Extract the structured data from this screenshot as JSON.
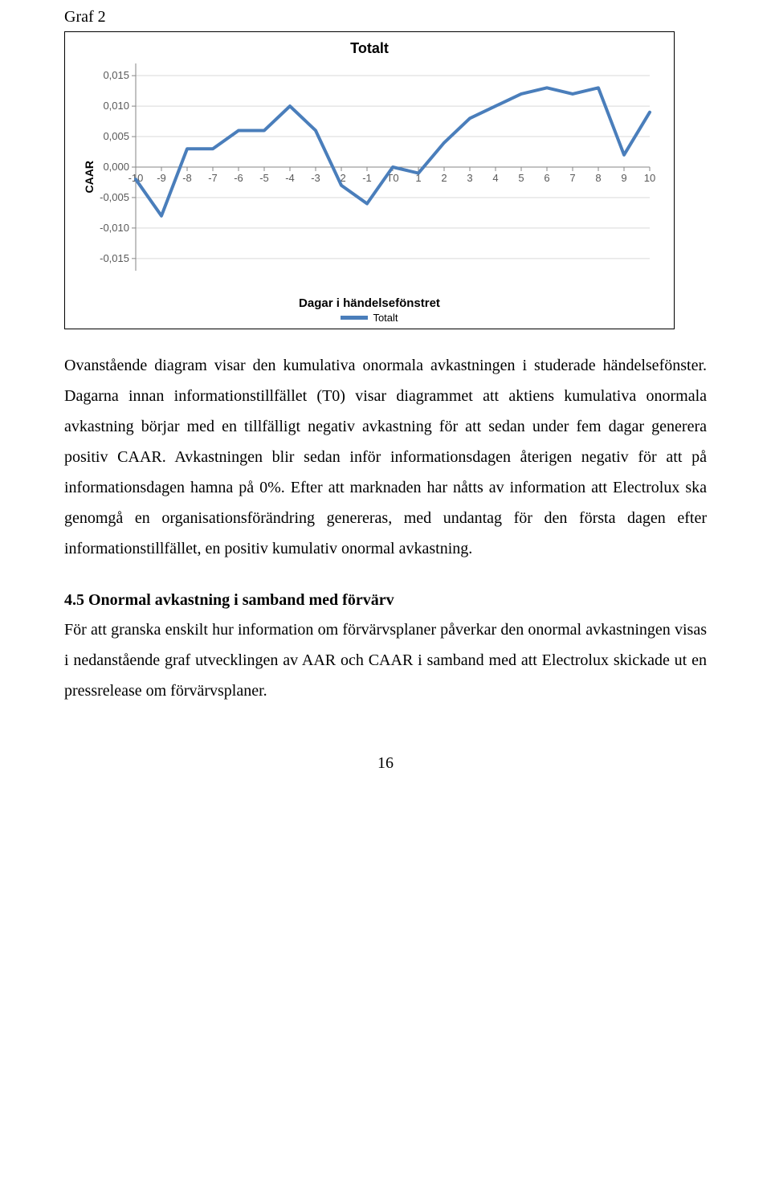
{
  "graf_label": "Graf 2",
  "chart": {
    "type": "line",
    "title": "Totalt",
    "ylabel": "CAAR",
    "xlabel": "Dagar i händelsefönstret",
    "legend_label": "Totalt",
    "line_color": "#4a7ebb",
    "line_width": 4,
    "grid_color": "#d9d9d9",
    "axis_color": "#868686",
    "tick_label_color": "#595959",
    "background_color": "#ffffff",
    "xticks": [
      "-10",
      "-9",
      "-8",
      "-7",
      "-6",
      "-5",
      "-4",
      "-3",
      "-2",
      "-1",
      "T0",
      "1",
      "2",
      "3",
      "4",
      "5",
      "6",
      "7",
      "8",
      "9",
      "10"
    ],
    "yticks": [
      -0.015,
      -0.01,
      -0.005,
      "0,000",
      0.005,
      0.01,
      0.015
    ],
    "ytick_labels": [
      "-0,015",
      "-0,010",
      "-0,005",
      "0,000",
      "0,005",
      "0,010",
      "0,015"
    ],
    "ylim": [
      -0.017,
      0.017
    ],
    "values": [
      -0.002,
      -0.008,
      0.003,
      0.003,
      0.006,
      0.006,
      0.01,
      0.006,
      -0.003,
      -0.006,
      0.0,
      -0.001,
      0.004,
      0.008,
      0.01,
      0.012,
      0.013,
      0.012,
      0.013,
      0.002,
      0.009
    ]
  },
  "para1": "Ovanstående diagram visar den kumulativa onormala avkastningen i studerade händelsefönster. Dagarna innan informationstillfället (T0) visar diagrammet att aktiens kumulativa onormala avkastning börjar med en tillfälligt negativ avkastning för att sedan under fem dagar generera positiv CAAR. Avkastningen blir sedan inför informationsdagen återigen negativ för att på informationsdagen hamna på 0%. Efter att marknaden har nåtts av information att Electrolux ska genomgå en organisationsförändring genereras, med undantag för den första dagen efter informationstillfället, en positiv kumulativ onormal avkastning.",
  "heading": "4.5 Onormal avkastning i samband med förvärv",
  "para2": "För att granska enskilt hur information om förvärvsplaner påverkar den onormal avkastningen visas i nedanstående graf utvecklingen av AAR och CAAR i samband med att Electrolux skickade ut en pressrelease om förvärvsplaner.",
  "page_number": "16"
}
